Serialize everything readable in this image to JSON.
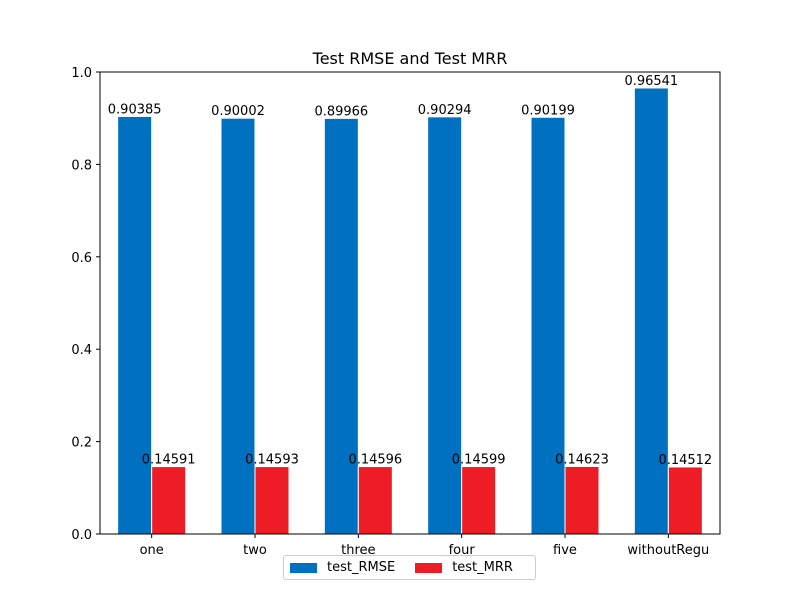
{
  "chart_data": {
    "type": "bar",
    "title": "Test RMSE and Test MRR",
    "xlabel": "",
    "ylabel": "",
    "categories": [
      "one",
      "two",
      "three",
      "four",
      "five",
      "withoutRegu"
    ],
    "series": [
      {
        "name": "test_RMSE",
        "color": "#0070c0",
        "values": [
          0.90385,
          0.90002,
          0.89966,
          0.90294,
          0.90199,
          0.96541
        ],
        "labels": [
          "0.90385",
          "0.90002",
          "0.89966",
          "0.90294",
          "0.90199",
          "0.96541"
        ]
      },
      {
        "name": "test_MRR",
        "color": "#ee1c25",
        "values": [
          0.14591,
          0.14593,
          0.14596,
          0.14599,
          0.14623,
          0.14512
        ],
        "labels": [
          "0.14591",
          "0.14593",
          "0.14596",
          "0.14599",
          "0.14623",
          "0.14512"
        ]
      }
    ],
    "ylim": [
      0,
      1
    ],
    "yticks": [
      "0.0",
      "0.2",
      "0.4",
      "0.6",
      "0.8",
      "1.0"
    ],
    "legend_position": "bottom-center",
    "grid": false
  }
}
